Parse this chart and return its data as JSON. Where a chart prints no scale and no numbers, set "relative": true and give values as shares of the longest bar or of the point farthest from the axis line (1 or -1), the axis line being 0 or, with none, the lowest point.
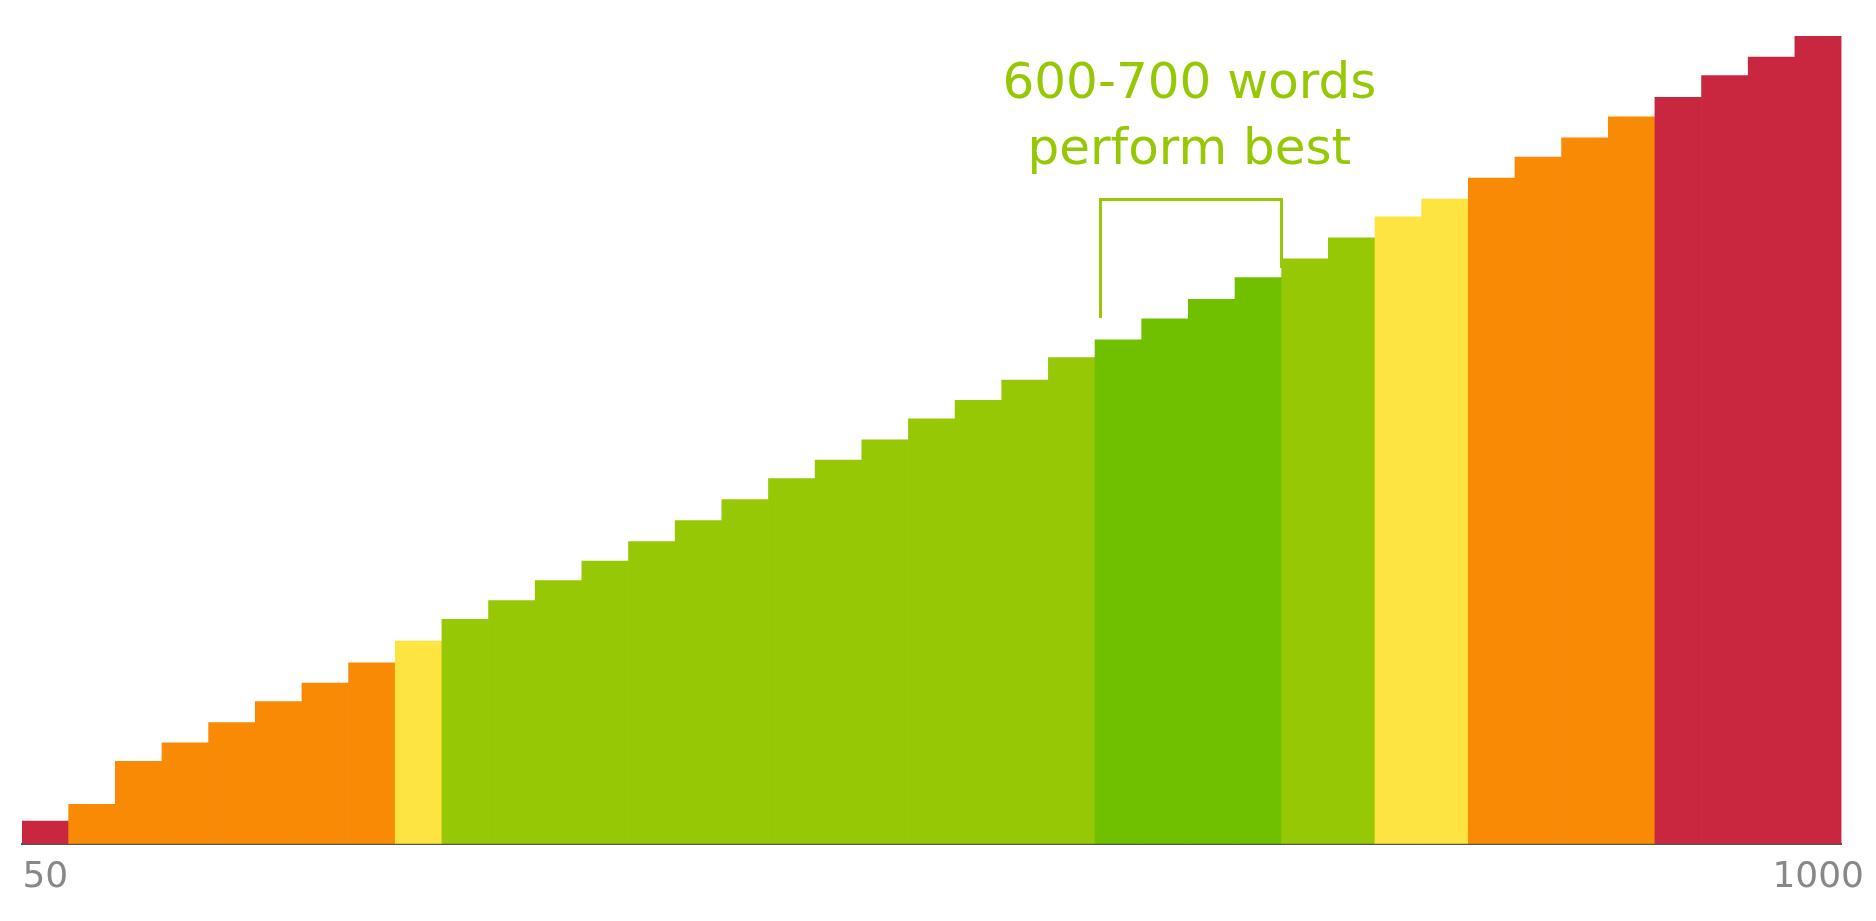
{
  "chart_data": {
    "type": "bar",
    "relative": true,
    "categories": [
      "50",
      null,
      null,
      null,
      null,
      null,
      null,
      null,
      null,
      null,
      null,
      null,
      null,
      null,
      null,
      null,
      null,
      null,
      null,
      null,
      null,
      null,
      null,
      null,
      null,
      null,
      null,
      null,
      null,
      null,
      null,
      null,
      null,
      null,
      null,
      null,
      null,
      null,
      "1000"
    ],
    "values": [
      0.028,
      0.049,
      0.102,
      0.125,
      0.15,
      0.176,
      0.199,
      0.224,
      0.251,
      0.278,
      0.301,
      0.326,
      0.35,
      0.374,
      0.4,
      0.426,
      0.452,
      0.475,
      0.5,
      0.526,
      0.549,
      0.574,
      0.602,
      0.624,
      0.65,
      0.674,
      0.701,
      0.724,
      0.75,
      0.776,
      0.798,
      0.824,
      0.85,
      0.874,
      0.9,
      0.924,
      0.951,
      0.974,
      1
    ],
    "colors": [
      "#c8273f",
      "#f98a06",
      "#f98a06",
      "#f98a06",
      "#f98a06",
      "#f98a06",
      "#f98a06",
      "#f98a06",
      "#fee440",
      "#96c805",
      "#96c805",
      "#96c805",
      "#96c805",
      "#96c805",
      "#96c805",
      "#96c805",
      "#96c805",
      "#96c805",
      "#96c805",
      "#96c805",
      "#96c805",
      "#96c805",
      "#96c805",
      "#70c000",
      "#70c000",
      "#70c000",
      "#70c000",
      "#96c805",
      "#96c805",
      "#fee440",
      "#fee440",
      "#f98a06",
      "#f98a06",
      "#f98a06",
      "#f98a06",
      "#c8273f",
      "#c8273f",
      "#c8273f",
      "#c8273f"
    ],
    "annotations": [
      "600-700 words perform best"
    ],
    "grid": false,
    "legend": false
  }
}
